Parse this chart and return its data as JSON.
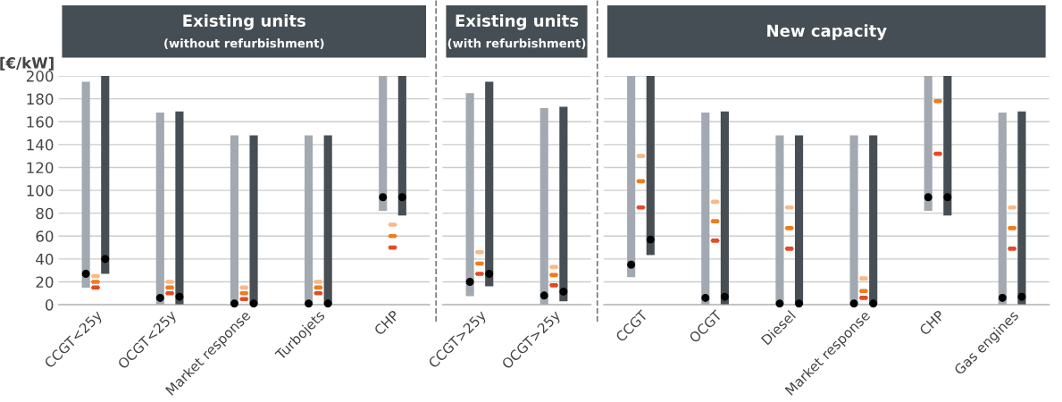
{
  "chart_data": [
    {
      "type": "bar",
      "title": "Existing units",
      "subtitle": "(without refurbishment)",
      "ylabel": "[€/kW]",
      "categories": [
        "CCGT<25y",
        "OCGT<25y",
        "Market response",
        "Turbojets",
        "CHP"
      ],
      "series": [
        {
          "color": "#a2a9b0",
          "values": [
            180,
            168,
            148,
            148,
            118
          ],
          "base": [
            15,
            0,
            0,
            0,
            82
          ]
        },
        {
          "color": "#474f55",
          "values": [
            173,
            169,
            148,
            148,
            122
          ],
          "base": [
            27,
            0,
            0,
            0,
            78
          ]
        },
        {
          "type": "scatter",
          "marker": "circle",
          "color": "#000000",
          "values": [
            27,
            6,
            1,
            1,
            94
          ]
        },
        {
          "type": "scatter",
          "marker": "circle",
          "color": "#000000",
          "values": [
            40,
            7,
            1,
            1,
            94
          ]
        },
        {
          "type": "scatter",
          "color": "#f9b98a",
          "values": [
            25,
            20,
            15,
            20,
            70
          ]
        },
        {
          "type": "scatter",
          "color": "#ef7d1a",
          "values": [
            20,
            15,
            10,
            15,
            60
          ]
        },
        {
          "type": "scatter",
          "color": "#e64a24",
          "values": [
            15,
            10,
            5,
            10,
            50
          ]
        }
      ],
      "ylim": [
        0,
        200
      ],
      "yticks": [
        0,
        20,
        40,
        60,
        80,
        100,
        120,
        140,
        160,
        180,
        200
      ],
      "grid": "y"
    },
    {
      "type": "bar",
      "title": "Existing units",
      "subtitle": "(with refurbishment)",
      "categories": [
        "CCGT>25y",
        "OCGT>25y"
      ],
      "series": [
        {
          "color": "#a2a9b0",
          "values": [
            177.5,
            172
          ],
          "base": [
            7.5,
            0
          ]
        },
        {
          "color": "#474f55",
          "values": [
            179,
            170
          ],
          "base": [
            16,
            3
          ]
        },
        {
          "type": "scatter",
          "marker": "circle",
          "color": "#000000",
          "values": [
            20,
            8
          ]
        },
        {
          "type": "scatter",
          "marker": "circle",
          "color": "#000000",
          "values": [
            27,
            11.5
          ]
        },
        {
          "type": "scatter",
          "color": "#f9b98a",
          "values": [
            46,
            33
          ]
        },
        {
          "type": "scatter",
          "color": "#ef7d1a",
          "values": [
            36,
            26
          ]
        },
        {
          "type": "scatter",
          "color": "#e64a24",
          "values": [
            27,
            17
          ]
        }
      ],
      "ylim": [
        0,
        200
      ],
      "yticks": [
        0,
        20,
        40,
        60,
        80,
        100,
        120,
        140,
        160,
        180,
        200
      ],
      "grid": "y",
      "tick_labels": "x"
    },
    {
      "type": "bar",
      "title": "New capacity",
      "categories": [
        "CCGT",
        "OCGT",
        "Diesel",
        "Market response",
        "CHP",
        "Gas engines"
      ],
      "series": [
        {
          "color": "#a2a9b0",
          "values": [
            176,
            168,
            148,
            148,
            118,
            168
          ],
          "base": [
            24,
            0,
            0,
            0,
            82,
            0
          ]
        },
        {
          "color": "#474f55",
          "values": [
            156.5,
            169,
            148,
            148,
            122,
            169
          ],
          "base": [
            43.5,
            0,
            0,
            0,
            78,
            0
          ]
        },
        {
          "type": "scatter",
          "marker": "circle",
          "color": "#000000",
          "values": [
            35,
            6,
            1,
            1,
            94,
            6
          ]
        },
        {
          "type": "scatter",
          "marker": "circle",
          "color": "#000000",
          "values": [
            57,
            7,
            1,
            1,
            94,
            7
          ]
        },
        {
          "type": "scatter",
          "color": "#f9b98a",
          "values": [
            130,
            90,
            85,
            23,
            null,
            85
          ]
        },
        {
          "type": "scatter",
          "color": "#ef7d1a",
          "values": [
            108,
            73,
            67,
            12,
            178,
            67
          ]
        },
        {
          "type": "scatter",
          "color": "#e64a24",
          "values": [
            85,
            56,
            49,
            6,
            132,
            49
          ]
        }
      ],
      "ylim": [
        0,
        200
      ],
      "yticks": [
        0,
        20,
        40,
        60,
        80,
        100,
        120,
        140,
        160,
        180,
        200
      ],
      "grid": "y",
      "tick_labels": "x"
    }
  ]
}
